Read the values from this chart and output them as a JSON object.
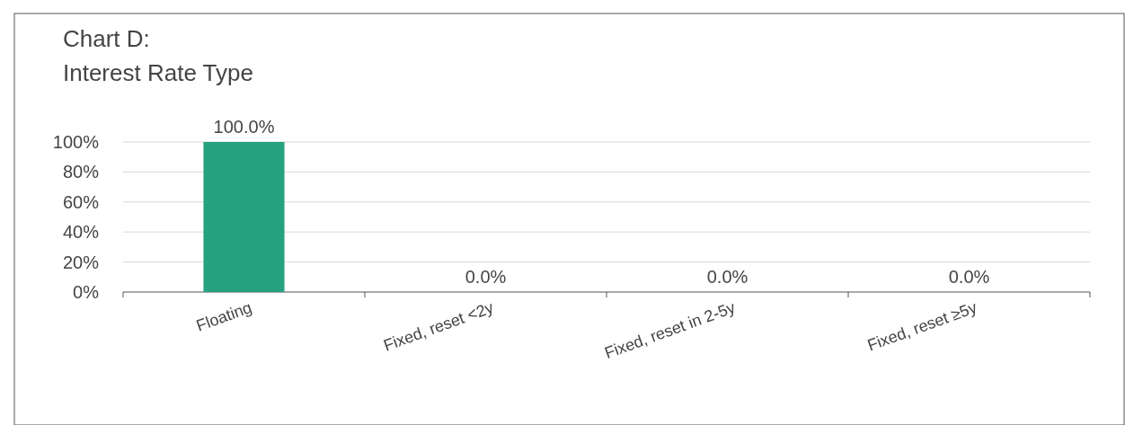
{
  "chart_data": {
    "type": "bar",
    "title": "Chart D:\nInterest Rate Type",
    "categories": [
      "Floating",
      "Fixed, reset <2y",
      "Fixed, reset in 2-5y",
      "Fixed, reset ≥5y"
    ],
    "values": [
      100,
      0,
      0,
      0
    ],
    "color": "#26a17f",
    "value_labels": [
      "100.0%",
      "0.0%",
      "0.0%",
      "0.0%"
    ],
    "ylim": [
      0,
      100
    ],
    "yticks": [
      {
        "value": 0,
        "label": "0%"
      },
      {
        "value": 20,
        "label": "20%"
      },
      {
        "value": 40,
        "label": "40%"
      },
      {
        "value": 60,
        "label": "60%"
      },
      {
        "value": 80,
        "label": "80%"
      },
      {
        "value": 100,
        "label": "100%"
      }
    ],
    "grid": "y"
  }
}
